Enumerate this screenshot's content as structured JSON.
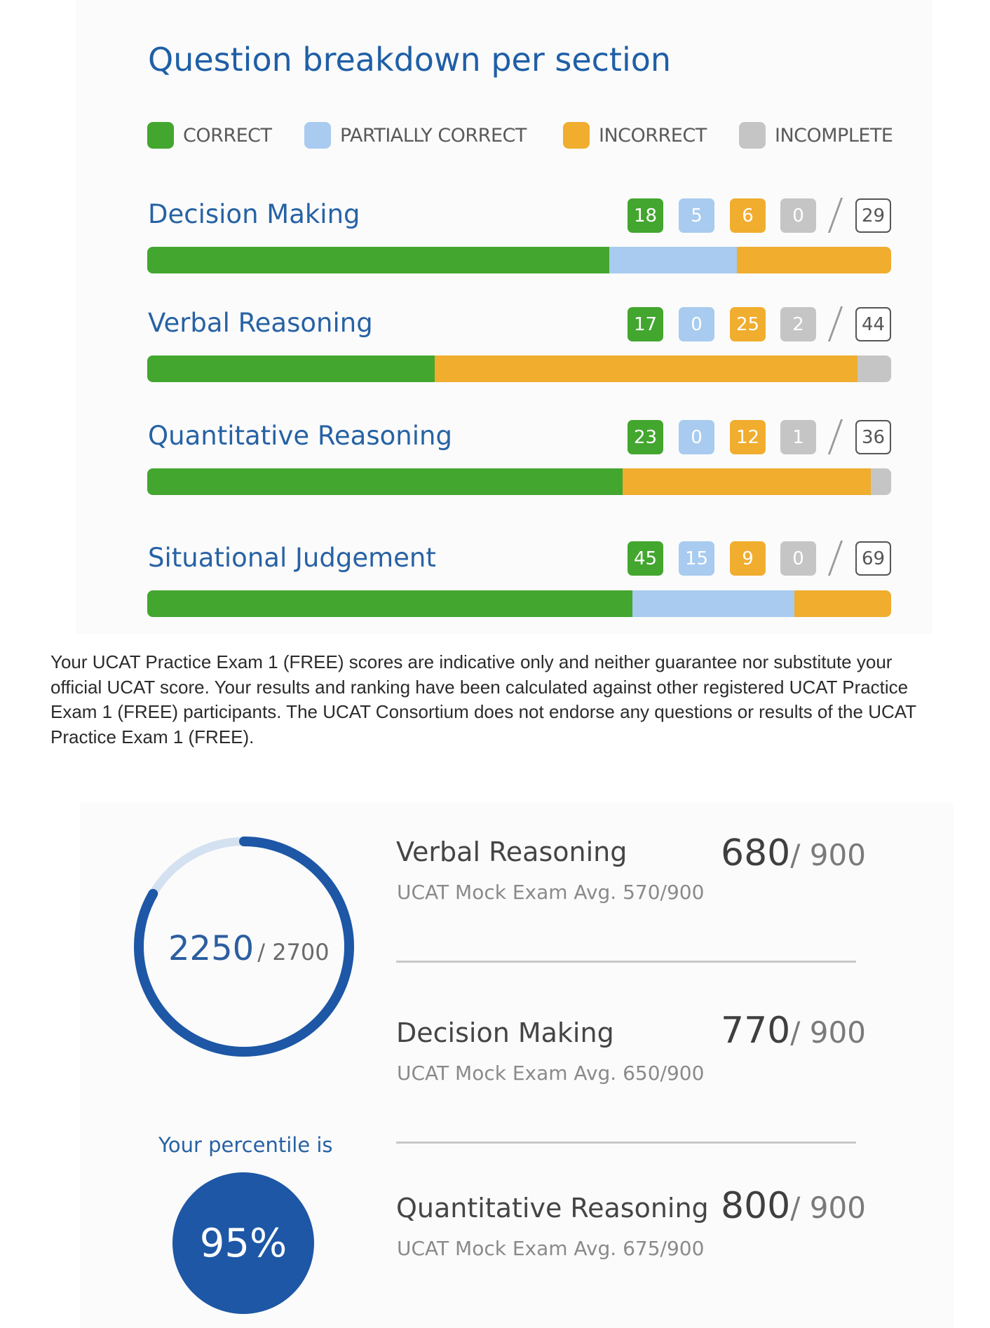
{
  "breakdown": {
    "title": "Question breakdown per section",
    "legend": [
      {
        "label": "CORRECT",
        "color": "#43a62f"
      },
      {
        "label": "PARTIALLY CORRECT",
        "color": "#a8cbef"
      },
      {
        "label": "INCORRECT",
        "color": "#f0ad2e"
      },
      {
        "label": "INCOMPLETE",
        "color": "#c5c5c5"
      }
    ],
    "sections": [
      {
        "name": "Decision Making",
        "correct": "18",
        "partial": "5",
        "incorrect": "6",
        "incomplete": "0",
        "total": "29"
      },
      {
        "name": "Verbal Reasoning",
        "correct": "17",
        "partial": "0",
        "incorrect": "25",
        "incomplete": "2",
        "total": "44"
      },
      {
        "name": "Quantitative Reasoning",
        "correct": "23",
        "partial": "0",
        "incorrect": "12",
        "incomplete": "1",
        "total": "36"
      },
      {
        "name": "Situational Judgement",
        "correct": "45",
        "partial": "15",
        "incorrect": "9",
        "incomplete": "0",
        "total": "69"
      }
    ]
  },
  "disclaimer": "Your UCAT Practice Exam 1 (FREE) scores are indicative only and neither guarantee nor substitute your official UCAT score. Your results and ranking have been calculated against other registered UCAT Practice Exam 1 (FREE) participants. The UCAT Consortium does not endorse any questions or results of the UCAT Practice Exam 1 (FREE).",
  "summary": {
    "total_score": "2250",
    "total_max": "/ 2700",
    "total_score_value": 2250,
    "total_max_value": 2700,
    "percentile_label": "Your percentile is",
    "percentile": "95%",
    "scores": [
      {
        "name": "Verbal Reasoning",
        "avg": "UCAT Mock Exam Avg. 570/900",
        "score": "680",
        "max": "/ 900"
      },
      {
        "name": "Decision Making",
        "avg": "UCAT Mock Exam Avg. 650/900",
        "score": "770",
        "max": "/ 900"
      },
      {
        "name": "Quantitative Reasoning",
        "avg": "UCAT Mock Exam Avg. 675/900",
        "score": "800",
        "max": "/ 900"
      }
    ]
  },
  "colors": {
    "correct": "#43a62f",
    "partial": "#a8cbef",
    "incorrect": "#f0ad2e",
    "incomplete": "#c5c5c5",
    "ring": "#1d57a6",
    "ring_track": "#d3e1f1"
  }
}
